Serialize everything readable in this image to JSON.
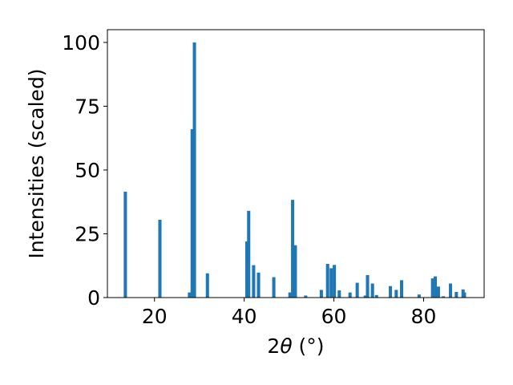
{
  "chart_data": {
    "type": "bar",
    "xlabel_main": "2",
    "xlabel_symbol": "θ",
    "xlabel_unit": " (°)",
    "ylabel": "Intensities (scaled)",
    "xlim": [
      9.5,
      93.5
    ],
    "ylim": [
      0,
      105
    ],
    "xticks": [
      20,
      40,
      60,
      80
    ],
    "yticks": [
      0,
      25,
      50,
      75,
      100
    ],
    "grid": false,
    "bar_width": 0.72,
    "bar_color": "#1f77b4",
    "x": [
      13.5,
      21.2,
      27.8,
      28.4,
      28.9,
      31.8,
      40.6,
      41.0,
      42.1,
      43.2,
      46.6,
      50.2,
      50.8,
      51.4,
      53.7,
      57.2,
      58.6,
      59.4,
      60.1,
      61.2,
      63.6,
      65.2,
      67.0,
      67.5,
      68.6,
      69.5,
      72.6,
      73.9,
      75.1,
      79.0,
      82.0,
      82.6,
      83.3,
      84.4,
      86.0,
      87.3,
      88.8,
      89.1
    ],
    "values": [
      41.5,
      30.5,
      2.0,
      66.0,
      100.0,
      9.5,
      22.0,
      34.0,
      12.7,
      9.8,
      8.0,
      2.0,
      38.3,
      20.5,
      0.8,
      3.0,
      13.2,
      11.5,
      12.8,
      2.8,
      2.0,
      5.8,
      0.8,
      8.8,
      5.5,
      1.0,
      4.5,
      3.0,
      6.8,
      1.2,
      7.5,
      8.3,
      4.3,
      0.5,
      5.5,
      2.2,
      3.2,
      2.0
    ]
  }
}
